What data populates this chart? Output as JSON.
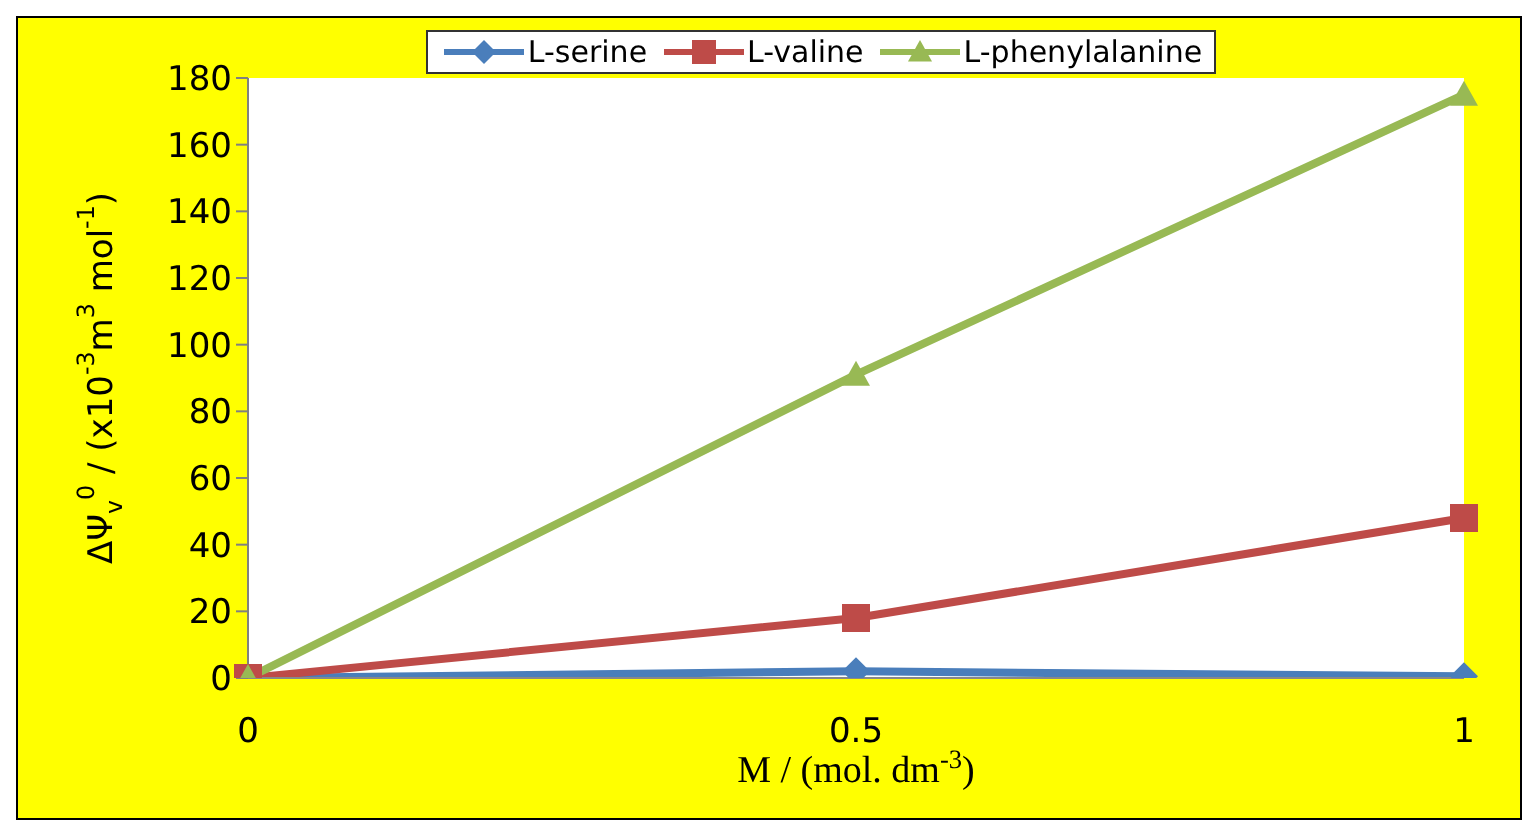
{
  "chart_data": {
    "type": "line",
    "xlabel": "M / (mol. dm$^{-3}$)",
    "ylabel": "ΔΨ$_{v}$$^{0}$ / (x10$^{-3}$m$^{3}$ mol$^{-1}$)",
    "categories": [
      "0",
      "0.5",
      "1"
    ],
    "series": [
      {
        "name": "L-serine",
        "color": "#4a7ebb",
        "marker": "diamond",
        "values": [
          0,
          2,
          0.5
        ]
      },
      {
        "name": "L-valine",
        "color": "#be4b48",
        "marker": "square",
        "values": [
          0,
          18,
          48
        ]
      },
      {
        "name": "L-phenylalanine",
        "color": "#98b954",
        "marker": "triangle",
        "values": [
          0,
          91,
          175
        ]
      }
    ],
    "ylim": [
      0,
      180
    ],
    "yticks": [
      0,
      20,
      40,
      60,
      80,
      100,
      120,
      140,
      160,
      180
    ],
    "grid": false,
    "legend": "top"
  }
}
